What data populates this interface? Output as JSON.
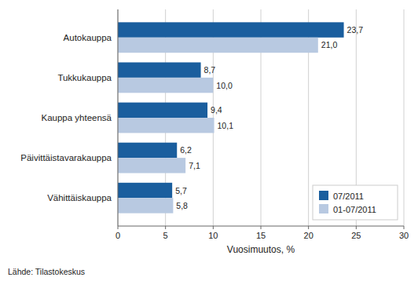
{
  "chart_data": {
    "type": "bar",
    "orientation": "horizontal",
    "categories": [
      "Vähittäiskauppa",
      "Päivittäistavarakauppa",
      "Kauppa yhteensä",
      "Tukkukauppa",
      "Autokauppa"
    ],
    "series": [
      {
        "name": "07/2011",
        "color": "#1a5e9e",
        "values": [
          5.7,
          6.2,
          9.4,
          8.7,
          23.7
        ],
        "value_labels": [
          "5,7",
          "6,2",
          "9,4",
          "8,7",
          "23,7"
        ]
      },
      {
        "name": "01-07/2011",
        "color": "#b8c9e1",
        "values": [
          5.8,
          7.1,
          10.1,
          10.0,
          21.0
        ],
        "value_labels": [
          "5,8",
          "7,1",
          "10,1",
          "10,0",
          "21,0"
        ]
      }
    ],
    "xlabel": "Vuosimuutos, %",
    "xlim": [
      0,
      30
    ],
    "xticks": [
      0,
      5,
      10,
      15,
      20,
      25,
      30
    ],
    "grid": true,
    "legend": "lower right",
    "data_labels": true,
    "annotations": [
      "Lähde: Tilastokeskus"
    ]
  }
}
